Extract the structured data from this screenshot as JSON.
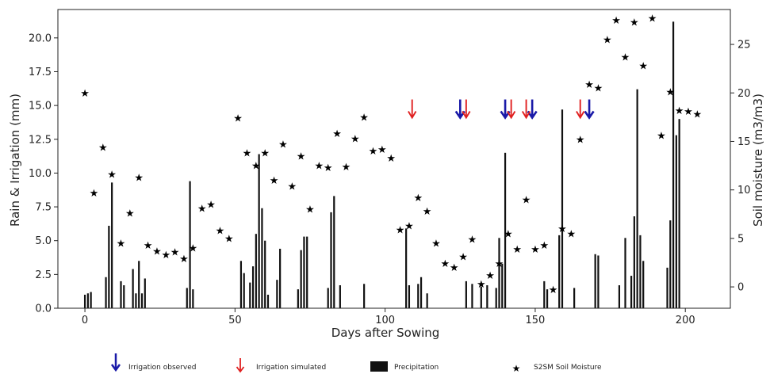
{
  "chart_data": {
    "type": "bar",
    "xlabel": "Days after Sowing",
    "ylabel": "Rain & Irrigation (mm)",
    "y2label": "Soil moisture (m3/m3)",
    "xlim": [
      -9,
      215
    ],
    "ylim": [
      0,
      22.1
    ],
    "y2lim": [
      -2.2,
      28.6
    ],
    "xticks": [
      0,
      50,
      100,
      150,
      200
    ],
    "yticks": [
      0.0,
      2.5,
      5.0,
      7.5,
      10.0,
      12.5,
      15.0,
      17.5,
      20.0
    ],
    "ytick_labels": [
      "0.0",
      "2.5",
      "5.0",
      "7.5",
      "10.0",
      "12.5",
      "15.0",
      "17.5",
      "20.0"
    ],
    "y2ticks": [
      0,
      5,
      10,
      15,
      20,
      25
    ],
    "grid": false,
    "legend_position": "bottom",
    "legend": {
      "irrigation_observed": "Irrigation observed",
      "irrigation_simulated": "Irrigation simulated",
      "precipitation": "Precipitation",
      "soil_moisture": "S2SM Soil Moisture"
    },
    "colors": {
      "observed": "#1a1aa8",
      "simulated": "#e02020",
      "bar": "#111111",
      "star": "#000000"
    },
    "precipitation": {
      "x": [
        0,
        1,
        2,
        7,
        8,
        9,
        12,
        13,
        16,
        17,
        18,
        19,
        20,
        34,
        35,
        36,
        52,
        53,
        55,
        56,
        57,
        58,
        59,
        60,
        61,
        64,
        65,
        71,
        72,
        73,
        74,
        81,
        82,
        83,
        85,
        93,
        107,
        108,
        111,
        112,
        114,
        127,
        129,
        132,
        134,
        137,
        138,
        139,
        140,
        153,
        154,
        158,
        159,
        163,
        170,
        171,
        178,
        180,
        182,
        183,
        184,
        185,
        186,
        194,
        195,
        196,
        197,
        198
      ],
      "values": [
        1.0,
        1.1,
        1.2,
        2.3,
        6.1,
        9.3,
        2.0,
        1.7,
        2.9,
        1.1,
        3.5,
        1.1,
        2.2,
        1.5,
        9.4,
        1.4,
        3.5,
        2.6,
        1.9,
        3.1,
        5.5,
        11.4,
        7.4,
        5.0,
        1.0,
        2.1,
        4.4,
        1.4,
        4.3,
        5.3,
        5.3,
        1.5,
        7.1,
        8.3,
        1.7,
        1.8,
        5.9,
        1.7,
        1.8,
        2.3,
        1.1,
        2.0,
        1.8,
        1.6,
        1.7,
        1.5,
        5.2,
        3.3,
        11.5,
        2.0,
        1.4,
        5.4,
        14.7,
        1.5,
        4.0,
        3.9,
        1.7,
        5.2,
        2.4,
        6.8,
        16.2,
        5.4,
        3.5,
        3.0,
        6.5,
        21.2,
        12.8,
        14.0
      ]
    },
    "irrigation_observed_x": [
      125,
      140,
      149,
      168
    ],
    "irrigation_simulated_x": [
      109,
      127,
      142,
      147,
      165
    ],
    "irrigation_level": 14.8,
    "soil_moisture": {
      "x": [
        0,
        3,
        6,
        9,
        12,
        15,
        18,
        21,
        24,
        27,
        30,
        33,
        36,
        39,
        42,
        45,
        48,
        51,
        54,
        57,
        60,
        63,
        66,
        69,
        72,
        75,
        78,
        81,
        84,
        87,
        90,
        93,
        96,
        99,
        102,
        105,
        108,
        111,
        114,
        117,
        120,
        123,
        126,
        129,
        132,
        135,
        138,
        141,
        144,
        147,
        150,
        153,
        156,
        159,
        162,
        165,
        168,
        171,
        174,
        177,
        180,
        183,
        186,
        189,
        192,
        195,
        198,
        201,
        204
      ],
      "values": [
        20.0,
        9.7,
        14.4,
        11.6,
        4.5,
        7.6,
        11.3,
        4.3,
        3.7,
        3.3,
        3.6,
        2.9,
        4.0,
        8.1,
        8.5,
        5.8,
        5.0,
        17.4,
        13.8,
        12.5,
        13.8,
        11.0,
        14.7,
        10.4,
        13.5,
        8.0,
        12.5,
        12.3,
        15.8,
        12.4,
        15.3,
        17.5,
        14.0,
        14.2,
        13.3,
        5.9,
        6.3,
        9.2,
        7.8,
        4.5,
        2.4,
        2.0,
        3.1,
        4.9,
        0.3,
        1.2,
        2.4,
        5.5,
        3.9,
        9.0,
        3.9,
        4.3,
        -0.3,
        6.0,
        5.5,
        15.2,
        20.9,
        20.5,
        25.5,
        27.5,
        23.7,
        27.3,
        22.8,
        27.7,
        15.6,
        20.1,
        18.2,
        18.1,
        17.8
      ]
    }
  }
}
